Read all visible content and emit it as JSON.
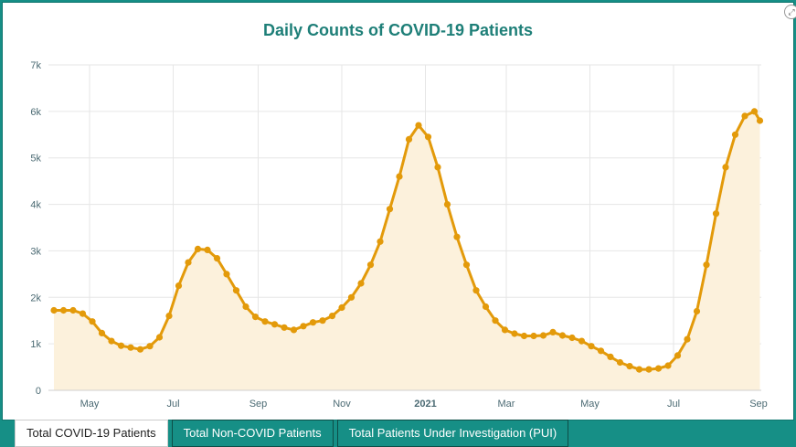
{
  "chart_data": {
    "type": "area",
    "title": "Daily Counts of COVID-19 Patients",
    "xlabel": "",
    "ylabel": "",
    "ylim": [
      0,
      7000
    ],
    "y_ticks": [
      "0",
      "1k",
      "2k",
      "3k",
      "4k",
      "5k",
      "6k",
      "7k"
    ],
    "x_ticks": [
      "May",
      "Jul",
      "Sep",
      "Nov",
      "2021",
      "Mar",
      "May",
      "Jul",
      "Sep"
    ],
    "grid": true,
    "colors": {
      "line": "#e39a0a",
      "fill": "#fcf1dc",
      "grid": "#e6e6e6",
      "title": "#1e7f78"
    },
    "series": [
      {
        "x": [
          "2020-04-05",
          "2020-04-12",
          "2020-04-19",
          "2020-04-26",
          "2020-05-03",
          "2020-05-10",
          "2020-05-17",
          "2020-05-24",
          "2020-05-31",
          "2020-06-07",
          "2020-06-14",
          "2020-06-21",
          "2020-06-28",
          "2020-07-05",
          "2020-07-12",
          "2020-07-19",
          "2020-07-26",
          "2020-08-02",
          "2020-08-09",
          "2020-08-16",
          "2020-08-23",
          "2020-08-30",
          "2020-09-06",
          "2020-09-13",
          "2020-09-20",
          "2020-09-27",
          "2020-10-04",
          "2020-10-11",
          "2020-10-18",
          "2020-10-25",
          "2020-11-01",
          "2020-11-08",
          "2020-11-15",
          "2020-11-22",
          "2020-11-29",
          "2020-12-06",
          "2020-12-13",
          "2020-12-20",
          "2020-12-27",
          "2021-01-03",
          "2021-01-10",
          "2021-01-17",
          "2021-01-24",
          "2021-01-31",
          "2021-02-07",
          "2021-02-14",
          "2021-02-21",
          "2021-02-28",
          "2021-03-07",
          "2021-03-14",
          "2021-03-21",
          "2021-03-28",
          "2021-04-04",
          "2021-04-11",
          "2021-04-18",
          "2021-04-25",
          "2021-05-02",
          "2021-05-09",
          "2021-05-16",
          "2021-05-23",
          "2021-05-30",
          "2021-06-06",
          "2021-06-13",
          "2021-06-20",
          "2021-06-27",
          "2021-07-04",
          "2021-07-11",
          "2021-07-18",
          "2021-07-25",
          "2021-08-01",
          "2021-08-08",
          "2021-08-15",
          "2021-08-22",
          "2021-08-29",
          "2021-09-02"
        ],
        "values": [
          1720,
          1720,
          1720,
          1650,
          1480,
          1230,
          1060,
          960,
          920,
          880,
          950,
          1140,
          1600,
          2250,
          2750,
          3040,
          3020,
          2840,
          2500,
          2150,
          1800,
          1580,
          1480,
          1420,
          1350,
          1300,
          1380,
          1460,
          1500,
          1600,
          1780,
          2000,
          2300,
          2700,
          3200,
          3900,
          4600,
          5400,
          5700,
          5450,
          4800,
          4000,
          3300,
          2700,
          2150,
          1800,
          1500,
          1300,
          1220,
          1170,
          1170,
          1180,
          1250,
          1180,
          1130,
          1060,
          950,
          850,
          720,
          600,
          520,
          450,
          450,
          470,
          530,
          750,
          1100,
          1700,
          2700,
          3800,
          4800,
          5500,
          5900,
          6000,
          5800
        ]
      }
    ]
  },
  "tabs": [
    {
      "label": "Total COVID-19 Patients"
    },
    {
      "label": "Total Non-COVID Patients"
    },
    {
      "label": "Total Patients Under Investigation (PUI)"
    }
  ],
  "icons": {
    "expand": "expand-icon"
  }
}
